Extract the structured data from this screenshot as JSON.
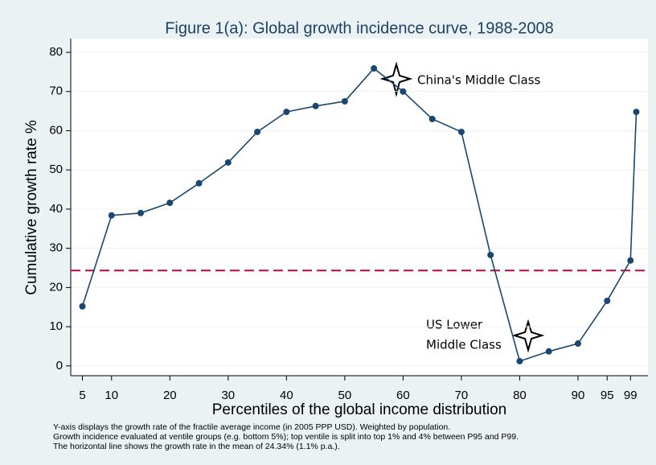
{
  "chart_data": {
    "type": "line",
    "title": "Figure 1(a): Global growth incidence curve, 1988-2008",
    "x_label": "Percentiles of the global income distribution",
    "y_label": "Cumulative growth rate %",
    "x": [
      5,
      10,
      15,
      20,
      25,
      30,
      35,
      40,
      45,
      50,
      55,
      60,
      65,
      70,
      75,
      80,
      85,
      90,
      95,
      99,
      100
    ],
    "series": [
      {
        "color": "#1a476f",
        "values": [
          15.2,
          38.4,
          39,
          41.6,
          46.6,
          51.9,
          59.7,
          64.8,
          66.3,
          67.5,
          75.9,
          70,
          63,
          59.7,
          28.3,
          1.2,
          3.7,
          5.7,
          16.6,
          26.9,
          64.8
        ]
      }
    ],
    "hline": {
      "value": 24.34,
      "color": "#c10534"
    },
    "xlim": [
      3,
      102
    ],
    "ylim": [
      -2.5,
      83.5
    ],
    "xticks": [
      5,
      10,
      20,
      30,
      40,
      50,
      60,
      70,
      80,
      90,
      95,
      99
    ],
    "yticks": [
      0,
      10,
      20,
      30,
      40,
      50,
      60,
      70,
      80
    ],
    "grid": true,
    "annotations": [
      "China's Middle Class",
      "US Lower",
      "Middle Class"
    ],
    "notes": [
      "Y-axis displays the growth rate of the fractile average income (in 2005 PPP USD). Weighted by population.",
      "Growth incidence evaluated at ventile groups (e.g. bottom 5%); top ventile is split into top 1% and 4% between P95 and P99.",
      "The horizontal line shows the growth rate in the mean of 24.34% (1.1% p.a.)."
    ]
  }
}
